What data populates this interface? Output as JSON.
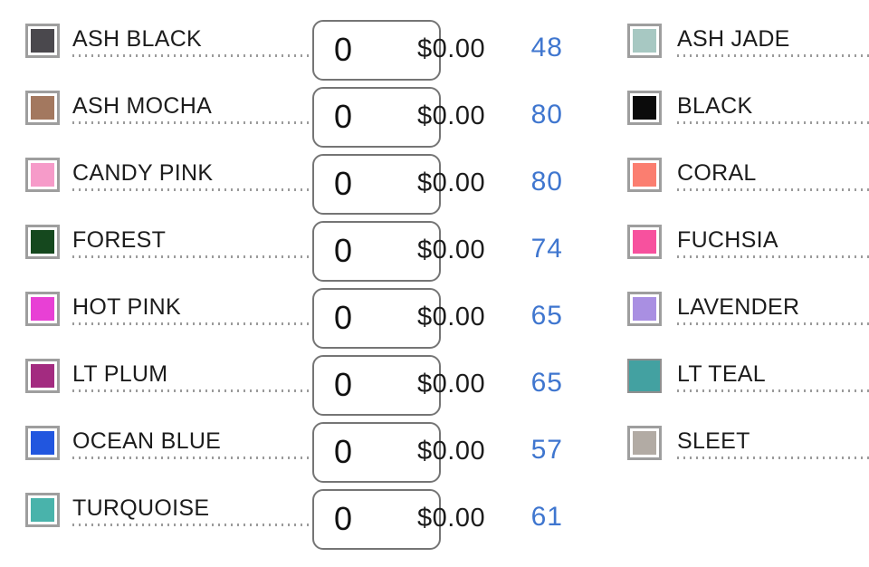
{
  "page": {
    "background": "#ffffff",
    "text_color": "#1c1c1c",
    "accent_blue": "#3f76cf",
    "swatch_frame_color": "#9e9e9e",
    "leader_dot_color": "#9b9b9b",
    "input_border_color": "#757575"
  },
  "left_column": {
    "rows": [
      {
        "label": "ASH BLACK",
        "swatch_color": "#4a484d",
        "quantity": "0",
        "price": "$0.00",
        "available": "48"
      },
      {
        "label": "ASH MOCHA",
        "swatch_color": "#a3785f",
        "quantity": "0",
        "price": "$0.00",
        "available": "80"
      },
      {
        "label": "CANDY PINK",
        "swatch_color": "#f69bc9",
        "quantity": "0",
        "price": "$0.00",
        "available": "80"
      },
      {
        "label": "FOREST",
        "swatch_color": "#15481e",
        "quantity": "0",
        "price": "$0.00",
        "available": "74"
      },
      {
        "label": "HOT PINK",
        "swatch_color": "#e840d5",
        "quantity": "0",
        "price": "$0.00",
        "available": "65"
      },
      {
        "label": "LT PLUM",
        "swatch_color": "#a32b80",
        "quantity": "0",
        "price": "$0.00",
        "available": "65"
      },
      {
        "label": "OCEAN BLUE",
        "swatch_color": "#2156df",
        "quantity": "0",
        "price": "$0.00",
        "available": "57"
      },
      {
        "label": "TURQUOISE",
        "swatch_color": "#49b3ab",
        "quantity": "0",
        "price": "$0.00",
        "available": "61"
      }
    ]
  },
  "right_column": {
    "rows": [
      {
        "label": "ASH JADE",
        "swatch_color": "#a7c8c2",
        "filled": false
      },
      {
        "label": "BLACK",
        "swatch_color": "#0b0b0b",
        "filled": false
      },
      {
        "label": "CORAL",
        "swatch_color": "#fb7e70",
        "filled": false
      },
      {
        "label": "FUCHSIA",
        "swatch_color": "#f7519e",
        "filled": false
      },
      {
        "label": "LAVENDER",
        "swatch_color": "#a98fe2",
        "filled": false
      },
      {
        "label": "LT TEAL",
        "swatch_color": "#43a1a1",
        "filled": true
      },
      {
        "label": "SLEET",
        "swatch_color": "#b2aba4",
        "filled": false
      }
    ]
  }
}
